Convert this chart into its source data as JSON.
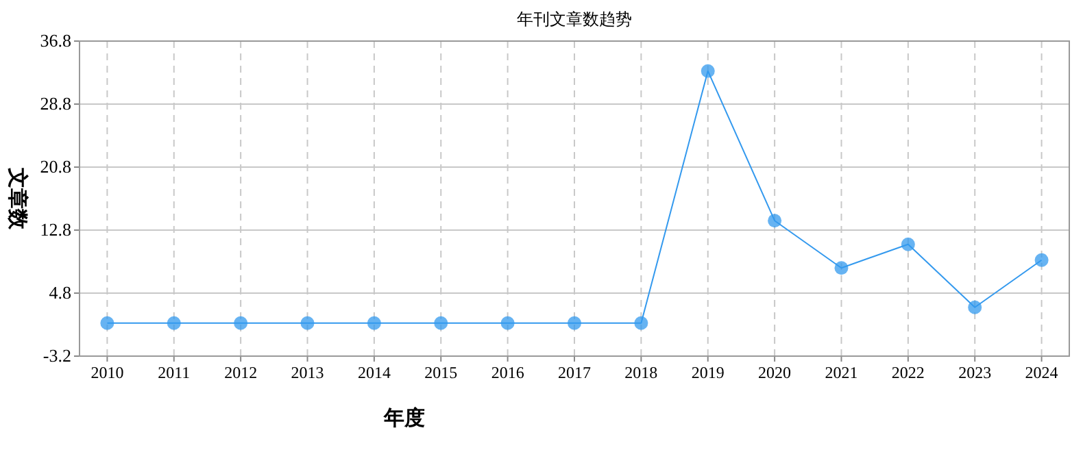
{
  "chart_data": {
    "type": "line",
    "title": "年刊文章数趋势",
    "xlabel": "年度",
    "ylabel": "文章数",
    "categories": [
      "2010",
      "2011",
      "2012",
      "2013",
      "2014",
      "2015",
      "2016",
      "2017",
      "2018",
      "2019",
      "2020",
      "2021",
      "2022",
      "2023",
      "2024"
    ],
    "series": [
      {
        "color": "#3399ee",
        "values": [
          1,
          1,
          1,
          1,
          1,
          1,
          1,
          1,
          1,
          33,
          14,
          8,
          11,
          3,
          9
        ]
      }
    ],
    "ylim": [
      -3.2,
      36.8
    ],
    "yticks": [
      {
        "value": -3.2,
        "label": "-3.2"
      },
      4.8,
      12.8,
      20.8,
      28.8,
      36.8
    ],
    "grid": true,
    "marker": "circle"
  }
}
